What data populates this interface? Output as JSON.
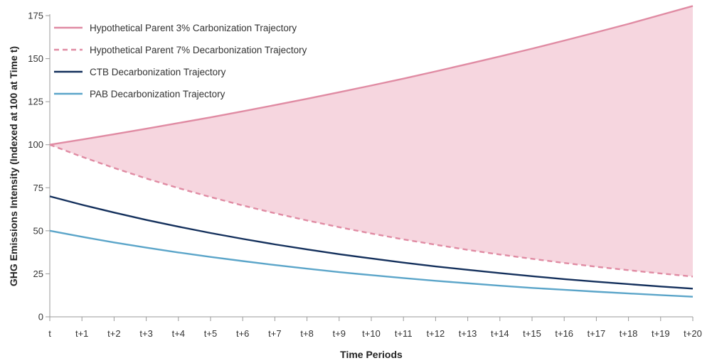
{
  "chart_data": {
    "type": "line",
    "title": "",
    "xlabel": "Time Periods",
    "ylabel": "GHG Emissions Intensity (Indexed at 100 at Time t)",
    "categories": [
      "t",
      "t+1",
      "t+2",
      "t+3",
      "t+4",
      "t+5",
      "t+6",
      "t+7",
      "t+8",
      "t+9",
      "t+10",
      "t+11",
      "t+12",
      "t+13",
      "t+14",
      "t+15",
      "t+16",
      "t+17",
      "t+18",
      "t+19",
      "t+20"
    ],
    "ylim": [
      0,
      175
    ],
    "yticks": [
      0,
      25,
      50,
      75,
      100,
      125,
      150,
      175
    ],
    "grid": false,
    "legend_position": "top-left",
    "shaded_region": {
      "between": [
        "Hypothetical Parent 3% Carbonization Trajectory",
        "Hypothetical Parent 7% Decarbonization Trajectory"
      ],
      "color": "#f6d6df"
    },
    "series": [
      {
        "name": "Hypothetical Parent 3% Carbonization Trajectory",
        "style": "solid",
        "color": "#e08ba3",
        "values": [
          100,
          103,
          106.1,
          109.3,
          112.6,
          115.9,
          119.4,
          123,
          126.7,
          130.5,
          134.4,
          138.4,
          142.6,
          146.9,
          151.3,
          155.8,
          160.5,
          165.3,
          170.2,
          175.4,
          180.6
        ]
      },
      {
        "name": "Hypothetical Parent 7% Decarbonization Trajectory",
        "style": "dashed",
        "color": "#e08ba3",
        "values": [
          100,
          93,
          86.5,
          80.4,
          74.8,
          69.6,
          64.7,
          60.2,
          56,
          52.1,
          48.4,
          45,
          41.9,
          38.9,
          36.2,
          33.7,
          31.3,
          29.1,
          27.1,
          25.2,
          23.4
        ]
      },
      {
        "name": "CTB Decarbonization Trajectory",
        "style": "solid",
        "color": "#14305c",
        "values": [
          70,
          65.1,
          60.6,
          56.3,
          52.4,
          48.7,
          45.3,
          42.1,
          39.2,
          36.4,
          33.9,
          31.5,
          29.3,
          27.3,
          25.4,
          23.6,
          21.9,
          20.4,
          19,
          17.6,
          16.4
        ]
      },
      {
        "name": "PAB Decarbonization Trajectory",
        "style": "solid",
        "color": "#5ba5c9",
        "values": [
          50,
          46.5,
          43.2,
          40.2,
          37.4,
          34.8,
          32.4,
          30.1,
          28,
          26,
          24.2,
          22.5,
          20.9,
          19.5,
          18.1,
          16.8,
          15.7,
          14.6,
          13.6,
          12.6,
          11.7
        ]
      }
    ]
  }
}
